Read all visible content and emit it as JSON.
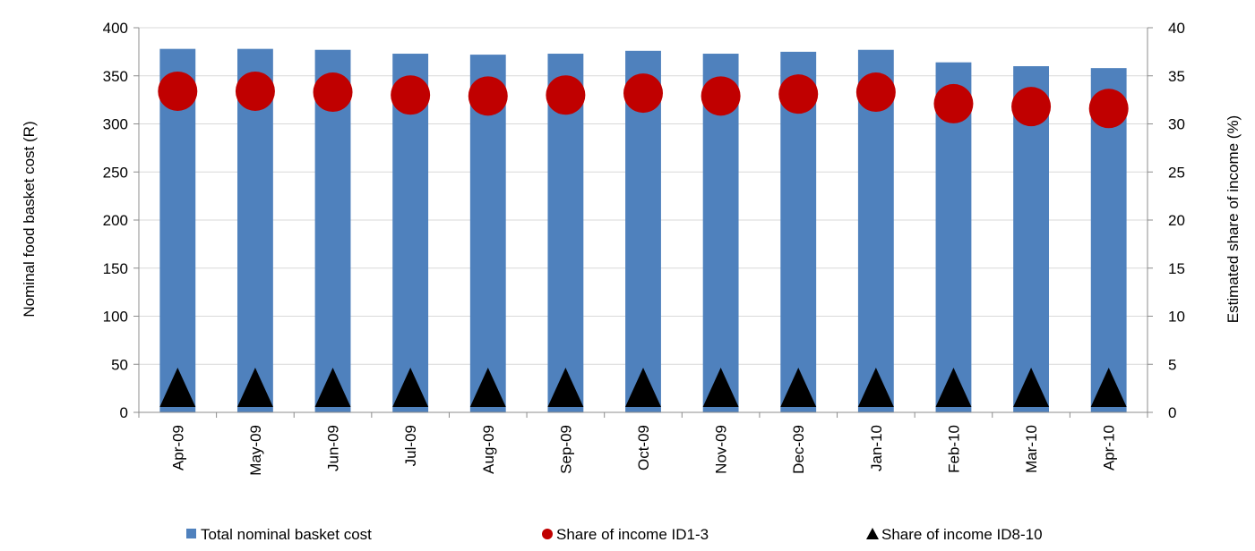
{
  "chart_data": {
    "type": "bar",
    "categories": [
      "Apr-09",
      "May-09",
      "Jun-09",
      "Jul-09",
      "Aug-09",
      "Sep-09",
      "Oct-09",
      "Nov-09",
      "Dec-09",
      "Jan-10",
      "Feb-10",
      "Mar-10",
      "Apr-10"
    ],
    "ylabel": "Nominal food basket cost (R)",
    "y2label": "Estimated share of income (%)",
    "ylim": [
      0,
      400
    ],
    "y2lim": [
      0,
      40
    ],
    "yticks": [
      0,
      50,
      100,
      150,
      200,
      250,
      300,
      350,
      400
    ],
    "y2ticks": [
      0,
      5,
      10,
      15,
      20,
      25,
      30,
      35,
      40
    ],
    "grid": true,
    "legend_position": "bottom",
    "series": [
      {
        "name": "Total nominal basket cost",
        "type": "bar",
        "axis": "left",
        "color": "#4f81bd",
        "values": [
          378,
          378,
          377,
          373,
          372,
          373,
          376,
          373,
          375,
          377,
          364,
          360,
          358
        ]
      },
      {
        "name": "Share of income ID1-3",
        "type": "scatter",
        "marker": "circle",
        "axis": "right",
        "color": "#c00000",
        "values": [
          33.4,
          33.4,
          33.3,
          33.0,
          32.9,
          33.0,
          33.2,
          32.9,
          33.1,
          33.3,
          32.1,
          31.8,
          31.6
        ]
      },
      {
        "name": "Share of income ID8-10",
        "type": "scatter",
        "marker": "triangle",
        "axis": "right",
        "color": "#000000",
        "values": [
          2.4,
          2.4,
          2.4,
          2.4,
          2.4,
          2.4,
          2.4,
          2.4,
          2.4,
          2.4,
          2.3,
          2.3,
          2.3
        ]
      }
    ]
  }
}
